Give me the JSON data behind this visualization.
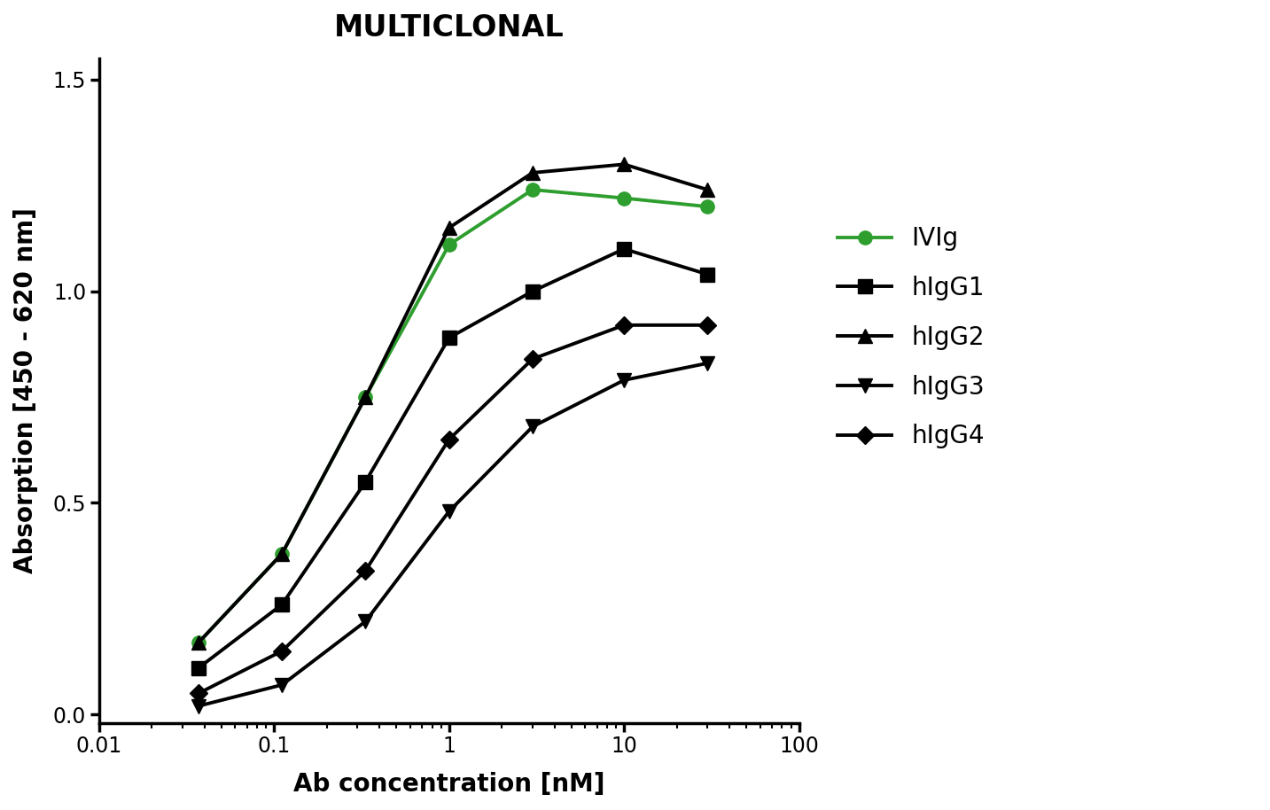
{
  "title": "MULTICLONAL",
  "xlabel": "Ab concentration [nM]",
  "ylabel": "Absorption [450 - 620 nm]",
  "xlim": [
    0.01,
    100
  ],
  "ylim": [
    -0.02,
    1.55
  ],
  "yticks": [
    0.0,
    0.5,
    1.0,
    1.5
  ],
  "series": [
    {
      "label": "IVIg",
      "color": "#2e9e2e",
      "marker": "o",
      "markersize": 11,
      "linewidth": 2.8,
      "x": [
        0.037,
        0.111,
        0.333,
        1.0,
        3.0,
        10.0,
        30.0
      ],
      "y": [
        0.17,
        0.38,
        0.75,
        1.11,
        1.24,
        1.22,
        1.2
      ]
    },
    {
      "label": "hIgG1",
      "color": "#000000",
      "marker": "s",
      "markersize": 11,
      "linewidth": 2.8,
      "x": [
        0.037,
        0.111,
        0.333,
        1.0,
        3.0,
        10.0,
        30.0
      ],
      "y": [
        0.11,
        0.26,
        0.55,
        0.89,
        1.0,
        1.1,
        1.04
      ]
    },
    {
      "label": "hIgG2",
      "color": "#000000",
      "marker": "^",
      "markersize": 11,
      "linewidth": 2.8,
      "x": [
        0.037,
        0.111,
        0.333,
        1.0,
        3.0,
        10.0,
        30.0
      ],
      "y": [
        0.17,
        0.38,
        0.75,
        1.15,
        1.28,
        1.3,
        1.24
      ]
    },
    {
      "label": "hIgG3",
      "color": "#000000",
      "marker": "v",
      "markersize": 11,
      "linewidth": 2.8,
      "x": [
        0.037,
        0.111,
        0.333,
        1.0,
        3.0,
        10.0,
        30.0
      ],
      "y": [
        0.02,
        0.07,
        0.22,
        0.48,
        0.68,
        0.79,
        0.83
      ]
    },
    {
      "label": "hIgG4",
      "color": "#000000",
      "marker": "D",
      "markersize": 10,
      "linewidth": 2.8,
      "x": [
        0.037,
        0.111,
        0.333,
        1.0,
        3.0,
        10.0,
        30.0
      ],
      "y": [
        0.05,
        0.15,
        0.34,
        0.65,
        0.84,
        0.92,
        0.92
      ]
    }
  ],
  "background_color": "#ffffff",
  "title_fontsize": 24,
  "label_fontsize": 20,
  "tick_fontsize": 17,
  "legend_fontsize": 20
}
